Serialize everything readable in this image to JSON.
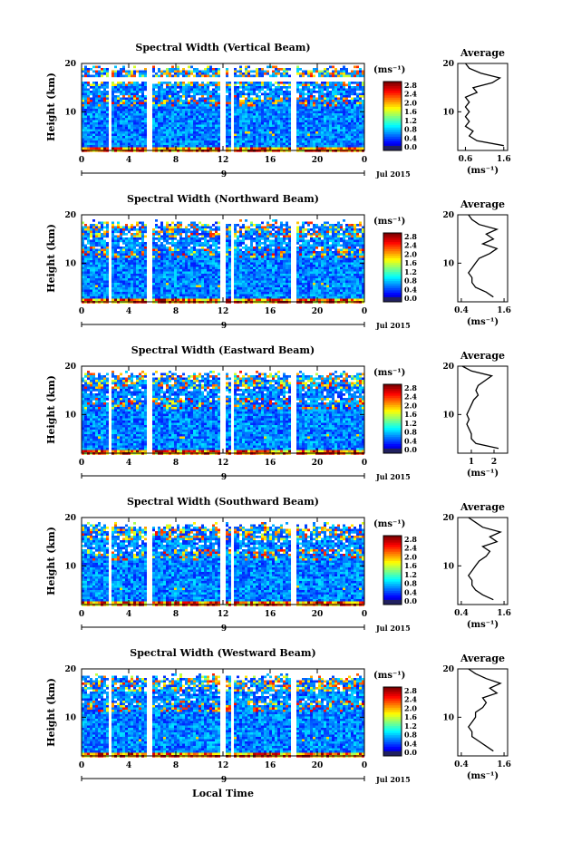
{
  "chart_data": {
    "type": "heatmap",
    "x_label": "Local Time",
    "x_ticks": [
      "0",
      "4",
      "8",
      "12",
      "16",
      "20",
      "0"
    ],
    "xlim": [
      0,
      24
    ],
    "day_label": "9",
    "date_label": "Jul 2015",
    "y_label": "Height (km)",
    "y_ticks": [
      "20",
      "10"
    ],
    "ylim": [
      2,
      20
    ],
    "colorbar": {
      "unit": "(ms⁻¹)",
      "ticks": [
        "2.8",
        "2.4",
        "2.0",
        "1.6",
        "1.2",
        "0.8",
        "0.4",
        "0.0"
      ],
      "range": [
        0,
        3.0
      ]
    },
    "avg_title": "Average",
    "avg_unit": "(ms⁻¹)",
    "data_gaps_hours": [
      [
        2.1,
        2.5
      ],
      [
        5.5,
        5.9
      ],
      [
        11.7,
        12.0
      ],
      [
        12.6,
        12.9
      ],
      [
        17.7,
        18.1
      ]
    ],
    "panels": [
      {
        "title": "Spectral Width (Vertical Beam)",
        "avg_xticks": [
          "0.6",
          "1.6"
        ],
        "avg_xlim": [
          0.4,
          1.7
        ],
        "avg_heights": [
          3,
          4,
          5,
          6,
          7,
          8,
          9,
          10,
          11,
          12,
          13,
          14,
          15,
          16,
          17,
          18,
          19,
          20
        ],
        "avg_values": [
          1.6,
          0.9,
          0.7,
          0.8,
          0.6,
          0.7,
          0.6,
          0.7,
          0.6,
          0.7,
          0.6,
          0.9,
          0.8,
          1.3,
          1.5,
          1.0,
          0.7,
          0.6
        ]
      },
      {
        "title": "Spectral Width (Northward Beam)",
        "avg_xticks": [
          "0.4",
          "1.6"
        ],
        "avg_xlim": [
          0.3,
          1.7
        ],
        "avg_heights": [
          3,
          4,
          5,
          6,
          7,
          8,
          9,
          10,
          11,
          12,
          13,
          14,
          15,
          16,
          17,
          18,
          19,
          20
        ],
        "avg_values": [
          1.3,
          1.1,
          0.8,
          0.7,
          0.7,
          0.6,
          0.7,
          0.8,
          0.9,
          1.2,
          1.4,
          1.0,
          1.3,
          1.1,
          1.4,
          0.9,
          0.7,
          0.6
        ]
      },
      {
        "title": "Spectral Width (Eastward Beam)",
        "avg_xticks": [
          "1",
          "2"
        ],
        "avg_xlim": [
          0.4,
          2.6
        ],
        "avg_heights": [
          3,
          4,
          5,
          6,
          7,
          8,
          9,
          10,
          11,
          12,
          13,
          14,
          15,
          16,
          17,
          18,
          19,
          20
        ],
        "avg_values": [
          2.2,
          1.2,
          1.0,
          1.0,
          0.9,
          0.8,
          0.9,
          0.8,
          0.9,
          1.0,
          1.1,
          1.3,
          1.2,
          1.3,
          1.6,
          1.9,
          1.0,
          0.6
        ]
      },
      {
        "title": "Spectral Width (Southward Beam)",
        "avg_xticks": [
          "0.4",
          "1.6"
        ],
        "avg_xlim": [
          0.3,
          1.7
        ],
        "avg_heights": [
          3,
          4,
          5,
          6,
          7,
          8,
          9,
          10,
          11,
          12,
          13,
          14,
          15,
          16,
          17,
          18,
          19,
          20
        ],
        "avg_values": [
          1.3,
          1.0,
          0.8,
          0.7,
          0.7,
          0.6,
          0.7,
          0.8,
          0.9,
          1.1,
          1.2,
          1.0,
          1.4,
          1.2,
          1.5,
          1.0,
          0.8,
          0.6
        ]
      },
      {
        "title": "Spectral Width (Westward Beam)",
        "avg_xticks": [
          "0.4",
          "1.6"
        ],
        "avg_xlim": [
          0.3,
          1.7
        ],
        "avg_heights": [
          3,
          4,
          5,
          6,
          7,
          8,
          9,
          10,
          11,
          12,
          13,
          14,
          15,
          16,
          17,
          18,
          19,
          20
        ],
        "avg_values": [
          1.3,
          1.1,
          0.9,
          0.7,
          0.7,
          0.6,
          0.7,
          0.8,
          0.8,
          1.0,
          1.1,
          1.0,
          1.4,
          1.2,
          1.5,
          1.1,
          0.8,
          0.6
        ]
      }
    ]
  }
}
